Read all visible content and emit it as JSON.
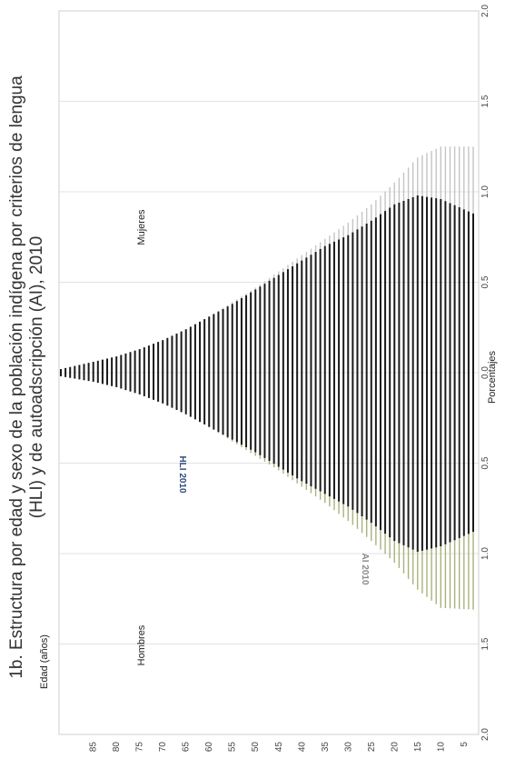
{
  "chart_data": {
    "type": "bar",
    "orientation": "population-pyramid (rotated, ages along bottom, percentages along right)",
    "title": "1b. Estructura por edad y sexo de la población indígena por criterios de lengua (HLI) y de autoadscripción (AI), 2010",
    "xlabel": "Edad (años)",
    "ylabel": "Porcentajes",
    "age_ticks": [
      "5",
      "10",
      "15",
      "20",
      "25",
      "30",
      "35",
      "40",
      "45",
      "50",
      "55",
      "60",
      "65",
      "70",
      "75",
      "80",
      "85"
    ],
    "percent_ticks": [
      "2.0",
      "1.5",
      "1.0",
      "0.5",
      "0.0",
      "0.5",
      "1.0",
      "1.5",
      "2.0"
    ],
    "percent_tick_values": [
      -2.0,
      -1.5,
      -1.0,
      -0.5,
      0.0,
      0.5,
      1.0,
      1.5,
      2.0
    ],
    "ylim": [
      -2.0,
      2.0
    ],
    "age_range": [
      3,
      92
    ],
    "annotations": {
      "mujeres": "Mujeres",
      "hombres": "Hombres",
      "hli": "HLI 2010",
      "ai": "AI 2010"
    },
    "colors": {
      "hli": "#1a1a1a",
      "ai_mujeres": "#c4c4c4",
      "ai_hombres": "#a9b27c",
      "hli_label": "#2f4d7a",
      "ai_label": "#8a8a8a",
      "grid": "#e3e3e3"
    },
    "series": [
      {
        "name": "HLI 2010",
        "ages": [
          3,
          10,
          15,
          20,
          25,
          30,
          35,
          40,
          45,
          50,
          55,
          60,
          65,
          70,
          75,
          80,
          85,
          92
        ],
        "mujeres": [
          0.88,
          0.96,
          0.98,
          0.93,
          0.84,
          0.76,
          0.7,
          0.62,
          0.54,
          0.46,
          0.38,
          0.31,
          0.24,
          0.18,
          0.13,
          0.09,
          0.06,
          0.02
        ],
        "hombres": [
          -0.88,
          -0.96,
          -0.99,
          -0.93,
          -0.83,
          -0.74,
          -0.67,
          -0.6,
          -0.52,
          -0.44,
          -0.37,
          -0.3,
          -0.23,
          -0.17,
          -0.12,
          -0.08,
          -0.05,
          -0.02
        ]
      },
      {
        "name": "AI 2010",
        "ages": [
          3,
          10,
          15,
          20,
          25,
          30,
          35,
          40,
          45,
          50,
          55,
          60,
          65,
          70,
          75,
          80,
          85,
          92
        ],
        "mujeres": [
          1.25,
          1.25,
          1.19,
          1.05,
          0.93,
          0.83,
          0.74,
          0.65,
          0.56,
          0.47,
          0.39,
          0.31,
          0.24,
          0.18,
          0.13,
          0.09,
          0.06,
          0.02
        ],
        "hombres": [
          -1.31,
          -1.3,
          -1.2,
          -1.05,
          -0.93,
          -0.82,
          -0.72,
          -0.63,
          -0.54,
          -0.46,
          -0.38,
          -0.3,
          -0.23,
          -0.17,
          -0.12,
          -0.08,
          -0.05,
          -0.02
        ]
      }
    ],
    "grid": true,
    "legend": "none (inline annotations)"
  }
}
